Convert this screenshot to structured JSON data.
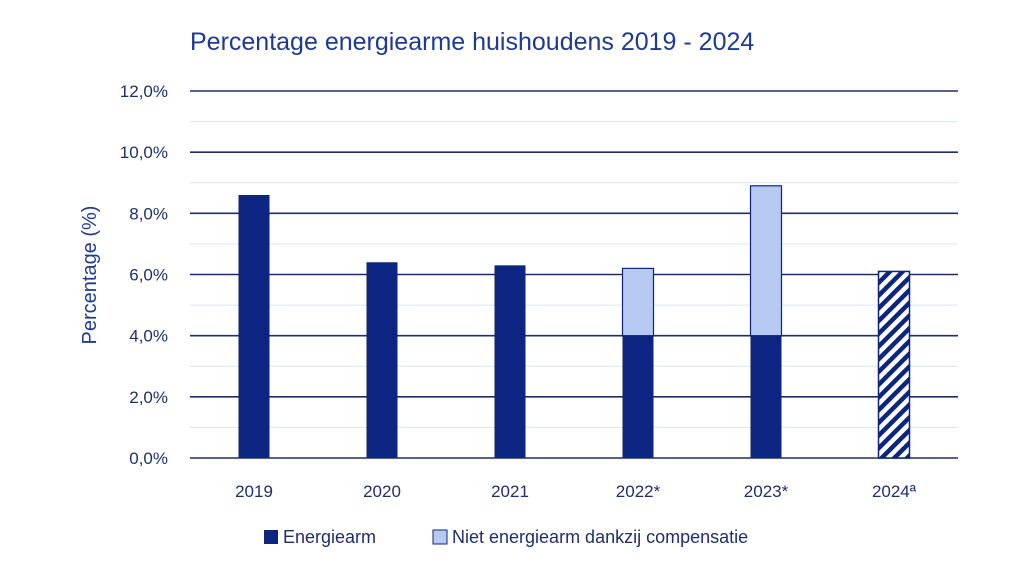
{
  "chart_data": {
    "type": "bar",
    "stacked": true,
    "title": "Percentage energiearme huishoudens 2019 - 2024",
    "ylabel": "Percentage (%)",
    "xlabel": "",
    "categories": [
      "2019",
      "2020",
      "2021",
      "2022*",
      "2023*",
      "2024ª"
    ],
    "ylim": [
      0,
      12
    ],
    "yticks": [
      "0,0%",
      "2,0%",
      "4,0%",
      "6,0%",
      "8,0%",
      "10,0%",
      "12,0%"
    ],
    "ytick_values": [
      0,
      2,
      4,
      6,
      8,
      10,
      12
    ],
    "minor_gridlines": true,
    "legend_position": "bottom",
    "series": [
      {
        "name": "Energiearm",
        "values": [
          8.6,
          6.4,
          6.3,
          4.0,
          4.0,
          null
        ],
        "color": "#0B2580"
      },
      {
        "name": "Niet energiearm dankzij compensatie",
        "values": [
          0,
          0,
          0,
          2.2,
          4.9,
          0
        ],
        "color": "#B6C9F0"
      }
    ],
    "hatched": {
      "values": [
        null,
        null,
        null,
        null,
        null,
        6.1
      ],
      "color": "#0B2580",
      "pattern": "diagonal-stripes"
    }
  }
}
